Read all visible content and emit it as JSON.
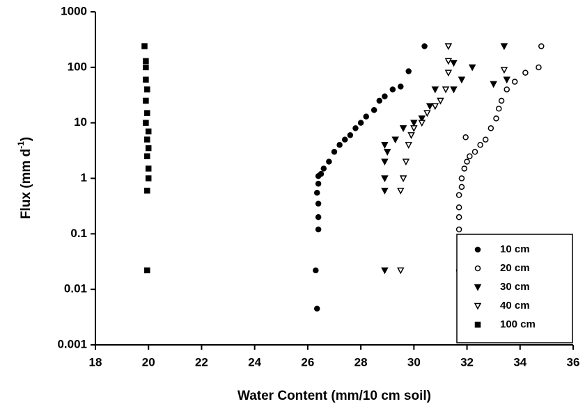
{
  "chart_data": {
    "type": "scatter",
    "xlabel": "Water Content (mm/10 cm soil)",
    "ylabel": {
      "text": "Flux (mm d",
      "sup": "-1",
      "tail": ")"
    },
    "xlim": [
      18,
      36
    ],
    "xticks": [
      18,
      20,
      22,
      24,
      26,
      28,
      30,
      32,
      34,
      36
    ],
    "ylim": [
      0.001,
      1000
    ],
    "log_y": true,
    "yticks": [
      0.001,
      0.01,
      0.1,
      1,
      10,
      100,
      1000
    ],
    "legend": "lower right",
    "series": [
      {
        "name": "10 cm",
        "color": "#000000",
        "marker": "circle-filled",
        "x": [
          26.35,
          26.3,
          26.4,
          26.4,
          26.4,
          26.35,
          26.4,
          26.4,
          26.5,
          26.6,
          26.8,
          27.0,
          27.2,
          27.4,
          27.6,
          27.8,
          28.0,
          28.2,
          28.5,
          28.7,
          28.9,
          29.2,
          29.5,
          29.8,
          30.4
        ],
        "values": [
          0.0045,
          0.022,
          0.12,
          0.2,
          0.35,
          0.55,
          0.8,
          1.1,
          1.2,
          1.5,
          2,
          3,
          4,
          5,
          6,
          8,
          10,
          13,
          17,
          25,
          30,
          40,
          45,
          85,
          240
        ]
      },
      {
        "name": "20 cm",
        "color": "#000000",
        "marker": "circle-open",
        "x": [
          31.7,
          31.7,
          31.7,
          31.7,
          31.7,
          31.8,
          31.8,
          31.9,
          32.0,
          32.1,
          32.3,
          32.5,
          32.7,
          32.9,
          33.1,
          33.2,
          33.3,
          33.5,
          33.8,
          34.2,
          34.7,
          34.8,
          31.95
        ],
        "values": [
          0.022,
          0.12,
          0.2,
          0.3,
          0.5,
          0.7,
          1,
          1.5,
          2,
          2.5,
          3,
          4,
          5,
          8,
          12,
          18,
          25,
          40,
          55,
          80,
          100,
          240,
          5.5
        ]
      },
      {
        "name": "30 cm",
        "color": "#000000",
        "marker": "triangle-filled",
        "x": [
          28.9,
          28.9,
          28.9,
          28.9,
          28.9,
          29.0,
          29.3,
          29.6,
          30.0,
          30.3,
          30.6,
          30.8,
          31.5,
          31.8,
          32.2,
          31.5,
          33.4,
          33.0,
          33.5
        ],
        "values": [
          0.022,
          0.6,
          1,
          2,
          4,
          3,
          5,
          8,
          10,
          12,
          20,
          40,
          40,
          60,
          100,
          120,
          240,
          50,
          60
        ]
      },
      {
        "name": "40 cm",
        "color": "#000000",
        "marker": "triangle-open",
        "x": [
          29.5,
          29.5,
          29.6,
          29.7,
          29.8,
          29.9,
          30.0,
          30.3,
          30.5,
          30.8,
          31.0,
          31.2,
          31.3,
          31.3,
          31.3,
          33.4
        ],
        "values": [
          0.022,
          0.6,
          1,
          2,
          4,
          6,
          8,
          10,
          15,
          20,
          25,
          40,
          80,
          130,
          240,
          90
        ]
      },
      {
        "name": "100 cm",
        "color": "#000000",
        "marker": "square-filled",
        "x": [
          19.85,
          19.9,
          19.9,
          19.9,
          19.95,
          19.9,
          19.95,
          19.9,
          20.0,
          19.95,
          20.0,
          19.95,
          20.0,
          20.0,
          19.95,
          19.95
        ],
        "values": [
          240,
          130,
          100,
          60,
          40,
          25,
          15,
          10,
          7,
          5,
          3.5,
          2.5,
          1.5,
          1,
          0.6,
          0.022
        ]
      }
    ]
  }
}
